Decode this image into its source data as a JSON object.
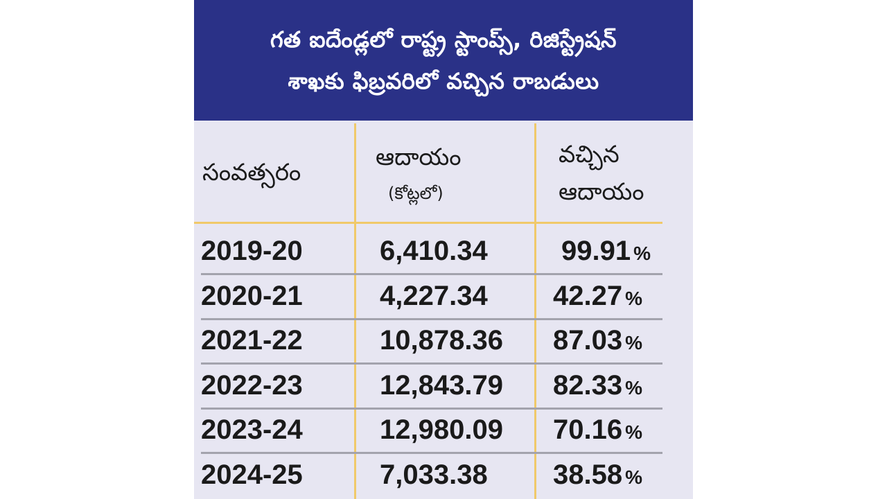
{
  "chart_data": {
    "type": "table",
    "title_lines": [
      "గత ఐదేండ్లలో రాష్ట్ర స్టాంప్స్, రిజిస్ట్రేషన్",
      "శాఖకు ఫిబ్రవరిలో వచ్చిన రాబడులు"
    ],
    "headers": {
      "year": "సంవత్సరం",
      "income": "ఆదాయం",
      "income_unit": "(కోట్లలో)",
      "received_line1": "వచ్చిన",
      "received_line2": "ఆదాయం"
    },
    "percent_sign": "%",
    "rows": [
      {
        "year": "2019-20",
        "income": "6,410.34",
        "income_value": 6410.34,
        "percent": "99.91",
        "percent_value": 99.91
      },
      {
        "year": "2020-21",
        "income": "4,227.34",
        "income_value": 4227.34,
        "percent": "42.27",
        "percent_value": 42.27
      },
      {
        "year": "2021-22",
        "income": "10,878.36",
        "income_value": 10878.36,
        "percent": "87.03",
        "percent_value": 87.03
      },
      {
        "year": "2022-23",
        "income": "12,843.79",
        "income_value": 12843.79,
        "percent": "82.33",
        "percent_value": 82.33
      },
      {
        "year": "2023-24",
        "income": "12,980.09",
        "income_value": 12980.09,
        "percent": "70.16",
        "percent_value": 70.16
      },
      {
        "year": "2024-25",
        "income": "7,033.38",
        "income_value": 7033.38,
        "percent": "38.58",
        "percent_value": 38.58
      }
    ]
  },
  "colors": {
    "title_background": "#2a3187",
    "table_background": "#e7e6f2",
    "column_divider": "#f0c96a",
    "row_divider": "#a3a3ad",
    "text": "#1a1a1a"
  }
}
